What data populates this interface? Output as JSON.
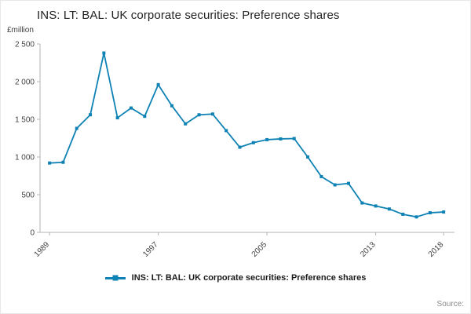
{
  "header": {
    "title": "INS: LT: BAL: UK corporate securities: Preference shares"
  },
  "chart": {
    "unit_label": "£million"
  },
  "legend": {
    "label": "INS: LT: BAL: UK corporate securities: Preference shares"
  },
  "footer": {
    "source_label": "Source:"
  },
  "colors": {
    "line": "#0e82b4",
    "axis": "#b3b3b3",
    "tick_text": "#414042"
  },
  "chart_data": {
    "type": "line",
    "title": "INS: LT: BAL: UK corporate securities: Preference shares",
    "xlabel": "",
    "ylabel": "£million",
    "x": [
      1989,
      1990,
      1991,
      1992,
      1993,
      1994,
      1995,
      1996,
      1997,
      1998,
      1999,
      2000,
      2001,
      2002,
      2003,
      2004,
      2005,
      2006,
      2007,
      2008,
      2009,
      2010,
      2011,
      2012,
      2013,
      2014,
      2015,
      2016,
      2017,
      2018
    ],
    "values": [
      920,
      930,
      1380,
      1560,
      2380,
      1520,
      1650,
      1540,
      1960,
      1680,
      1440,
      1560,
      1570,
      1350,
      1130,
      1190,
      1230,
      1240,
      1245,
      1000,
      740,
      630,
      650,
      390,
      350,
      310,
      240,
      205,
      260,
      270
    ],
    "ylim": [
      0,
      2500
    ],
    "y_ticks": [
      0,
      500,
      1000,
      1500,
      2000,
      2500
    ],
    "y_tick_labels": [
      "0",
      "500",
      "1 000",
      "1 500",
      "2 000",
      "2 500"
    ],
    "x_ticks": [
      1989,
      1997,
      2005,
      2013,
      2018
    ],
    "grid": false,
    "legend_position": "bottom",
    "marker": "square"
  }
}
